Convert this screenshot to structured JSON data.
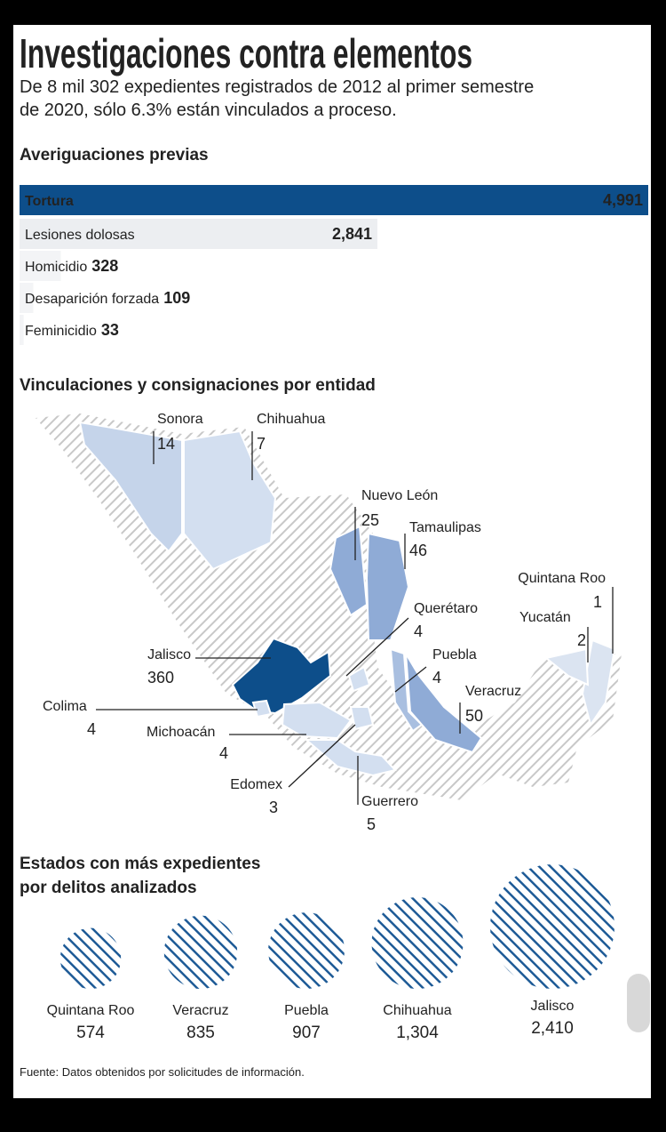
{
  "header": {
    "title": "Investigaciones contra elementos",
    "subtitle": [
      "De 8 mil 302 expedientes registrados de 2012 al primer semestre",
      "de 2020, sólo 6.3% están vinculados a proceso."
    ]
  },
  "chart_data": [
    {
      "type": "bar",
      "title": "Averiguaciones previas",
      "categories": [
        "Tortura",
        "Lesiones dolosas",
        "Homicidio",
        "Desaparición forzada",
        "Feminicidio"
      ],
      "values": [
        4991,
        2841,
        328,
        109,
        33
      ],
      "value_labels": [
        "4,991",
        "2,841",
        "328",
        "109",
        "33"
      ],
      "colors": [
        "#0d4e8a",
        "#eceef1",
        "#f3f4f6",
        "#f3f4f6",
        "#f3f4f6"
      ],
      "xlim": [
        0,
        4991
      ]
    },
    {
      "type": "map",
      "title": "Vinculaciones y consignaciones por entidad",
      "categories": [
        "Sonora",
        "Chihuahua",
        "Nuevo León",
        "Tamaulipas",
        "Querétaro",
        "Puebla",
        "Veracruz",
        "Quintana Roo",
        "Yucatán",
        "Jalisco",
        "Colima",
        "Michoacán",
        "Edomex",
        "Guerrero"
      ],
      "values": [
        14,
        7,
        25,
        46,
        4,
        4,
        50,
        1,
        2,
        360,
        4,
        4,
        3,
        5
      ],
      "colors": [
        "#c5d4ea",
        "#d3dff0",
        "#8fabd6",
        "#8fabd6",
        "#d3dff0",
        "#a9bfe0",
        "#8fabd6",
        "#dbe4f1",
        "#dbe4f1",
        "#0d4e8a",
        "#d3dff0",
        "#d3dff0",
        "#d3dff0",
        "#d3dff0"
      ]
    },
    {
      "type": "bubble",
      "title": [
        "Estados con más expedientes",
        "por delitos analizados"
      ],
      "categories": [
        "Quintana Roo",
        "Veracruz",
        "Puebla",
        "Chihuahua",
        "Jalisco"
      ],
      "values": [
        574,
        835,
        907,
        1304,
        2410
      ],
      "value_labels": [
        "574",
        "835",
        "907",
        "1,304",
        "2,410"
      ],
      "color": "#1d5a96"
    }
  ],
  "footer": {
    "source": "Fuente: Datos obtenidos por solicitudes de información."
  }
}
